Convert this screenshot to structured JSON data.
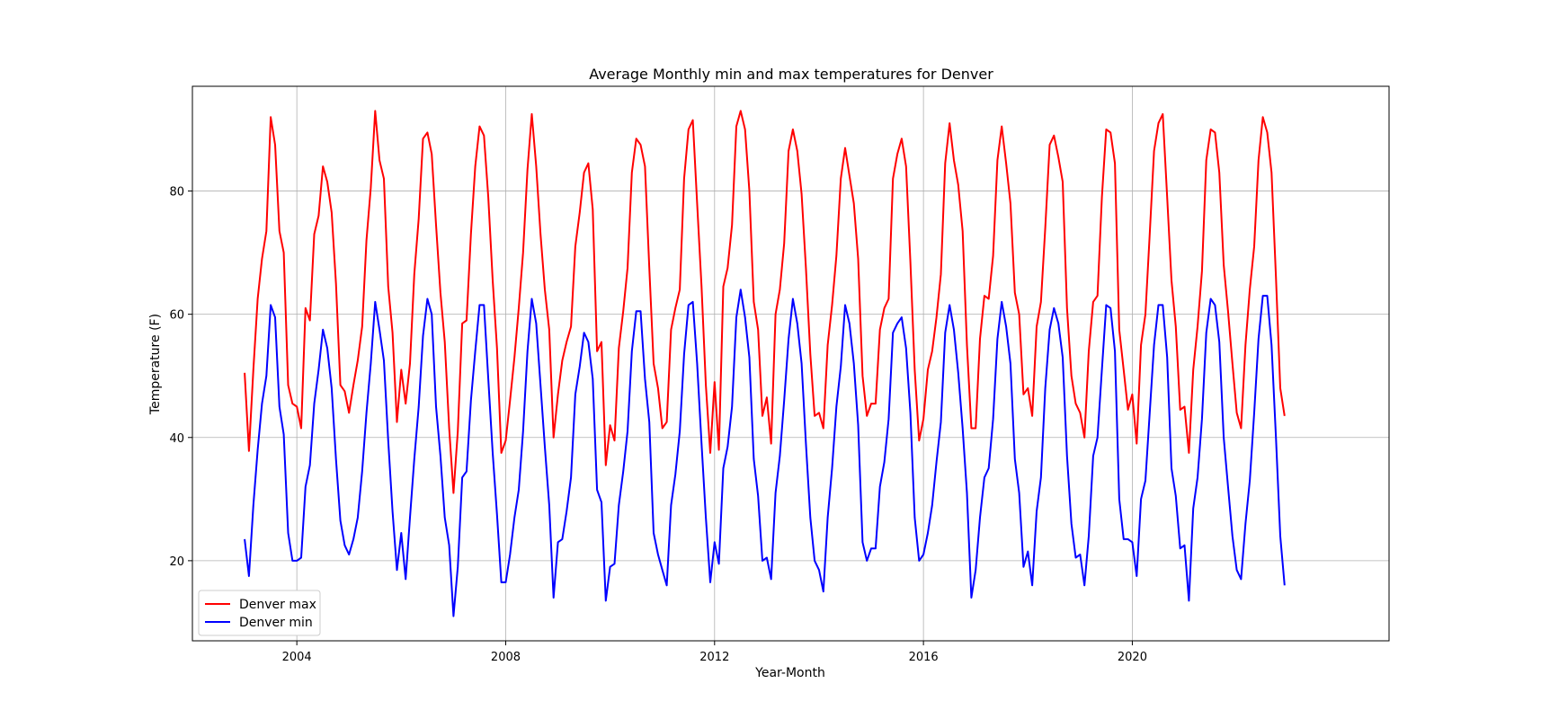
{
  "chart_data": {
    "type": "line",
    "title": "Average Monthly min and max temperatures for Denver",
    "xlabel": "Year-Month",
    "ylabel": "Temperature (F)",
    "x_start": "2003-01",
    "x_end": "2022-12",
    "xlim": [
      "2002-01",
      "2024-12"
    ],
    "ylim": [
      7,
      97
    ],
    "xticks": [
      "2004",
      "2008",
      "2012",
      "2016",
      "2020"
    ],
    "yticks": [
      20,
      40,
      60,
      80
    ],
    "grid": true,
    "legend_position": "lower-left",
    "series": [
      {
        "name": "Denver max",
        "color": "#ff0000",
        "values": [
          50.5,
          37.8,
          51,
          62.5,
          69,
          73.5,
          92,
          87.5,
          73.5,
          70,
          48.5,
          45.5,
          45,
          41.5,
          61,
          59,
          73,
          76,
          84,
          81.5,
          76.5,
          65,
          48.5,
          47.5,
          44,
          48.5,
          52.5,
          58,
          72,
          80.5,
          93,
          85,
          82,
          64.5,
          57,
          42.5,
          51,
          45.5,
          52,
          66.5,
          75.5,
          88.5,
          89.5,
          86,
          74.5,
          63.5,
          55.5,
          41.5,
          31,
          41,
          58.5,
          59,
          73,
          84,
          90.5,
          89,
          79,
          65.5,
          54.5,
          37.5,
          39.5,
          46,
          53,
          61,
          70,
          83.5,
          92.5,
          84,
          73,
          64,
          57.5,
          40,
          47,
          52.5,
          55.5,
          58,
          71,
          76.5,
          83,
          84.5,
          77,
          54,
          55.5,
          35.5,
          42,
          39.5,
          54.5,
          60.5,
          67.5,
          83,
          88.5,
          87.5,
          84,
          67.5,
          52,
          48,
          41.5,
          42.5,
          57.5,
          61,
          64,
          82,
          90,
          91.5,
          78,
          64.5,
          48.5,
          37.5,
          49,
          38,
          64.5,
          67.5,
          74.5,
          90.5,
          93,
          90,
          80,
          62,
          57.5,
          43.5,
          46.5,
          39,
          60,
          64,
          71.5,
          86.5,
          90,
          86.5,
          79.5,
          67.5,
          53.5,
          43.5,
          44,
          41.5,
          55,
          61.5,
          69.5,
          82,
          87,
          82.5,
          78,
          69,
          50,
          43.5,
          45.5,
          45.5,
          57.5,
          61,
          62.5,
          82,
          86,
          88.5,
          84,
          68.5,
          51,
          39.5,
          43,
          51,
          54,
          59.5,
          66.5,
          84.5,
          91,
          85,
          81,
          73.5,
          55,
          41.5,
          41.5,
          56,
          63,
          62.5,
          69.5,
          85,
          90.5,
          84.5,
          78,
          63.5,
          60,
          47,
          48,
          43.5,
          58,
          62,
          74,
          87.5,
          89,
          85.5,
          81.5,
          61,
          50,
          45.5,
          44,
          40,
          54,
          62,
          63,
          79,
          90,
          89.5,
          84.5,
          57.5,
          51,
          44.5,
          47,
          39,
          55,
          60,
          73,
          86.5,
          91,
          92.5,
          79,
          65.5,
          58,
          44.5,
          45,
          37.5,
          51,
          58,
          67,
          85,
          90,
          89.5,
          83,
          68,
          60.5,
          52,
          44,
          41.5,
          55,
          64,
          71,
          85,
          92,
          89.5,
          83,
          66,
          48,
          43.5
        ]
      },
      {
        "name": "Denver min",
        "color": "#0000ff",
        "values": [
          23.5,
          17.5,
          29,
          38,
          45.5,
          50,
          61.5,
          59.5,
          45,
          40.5,
          24.5,
          20,
          20,
          20.5,
          32,
          35.5,
          45.5,
          51,
          57.5,
          54.5,
          48,
          36.5,
          26.5,
          22.5,
          21,
          23.5,
          27,
          34.5,
          44,
          52,
          62,
          57.5,
          52.5,
          39.5,
          28,
          18.5,
          24.5,
          17,
          27,
          36.5,
          45,
          56.5,
          62.5,
          60,
          45,
          37,
          27,
          22.5,
          11,
          19,
          33.5,
          34.5,
          46,
          54,
          61.5,
          61.5,
          49.5,
          37.5,
          27.5,
          16.5,
          16.5,
          21,
          27,
          31.5,
          41,
          54,
          62.5,
          58.5,
          48.5,
          38.5,
          29,
          14,
          23,
          23.5,
          28,
          33.5,
          47,
          51.5,
          57,
          55.5,
          49.5,
          31.5,
          29.5,
          13.5,
          19,
          19.5,
          29,
          34.5,
          41,
          54,
          60.5,
          60.5,
          49.5,
          42.5,
          24.5,
          21,
          18.5,
          16,
          29,
          34,
          41,
          53.5,
          61.5,
          62,
          52,
          39,
          27,
          16.5,
          23,
          19.5,
          35,
          38.5,
          45,
          59.5,
          64,
          59.5,
          53,
          36.5,
          30.5,
          20,
          20.5,
          17,
          31,
          37,
          46,
          56,
          62.5,
          58.5,
          52,
          39,
          27,
          20,
          18.5,
          15,
          27,
          35,
          45,
          51.5,
          61.5,
          58.5,
          52,
          42,
          23,
          20,
          22,
          22,
          32,
          36,
          43,
          57,
          58.5,
          59.5,
          54.5,
          44,
          27,
          20,
          21,
          24.5,
          29,
          36,
          42.5,
          57,
          61.5,
          57.5,
          50.5,
          41.5,
          31,
          14,
          18.5,
          27,
          33.5,
          35,
          43,
          56,
          62,
          58,
          52,
          36.5,
          31,
          19,
          21.5,
          16,
          28,
          33.5,
          48,
          57.5,
          61,
          58.5,
          53,
          37,
          26,
          20.5,
          21,
          16,
          24,
          37,
          40,
          51,
          61.5,
          61,
          54,
          30,
          23.5,
          23.5,
          23,
          17.5,
          30,
          33,
          44,
          55,
          61.5,
          61.5,
          53,
          35,
          30.5,
          22,
          22.5,
          13.5,
          28.5,
          33.5,
          43,
          57,
          62.5,
          61.5,
          55.5,
          40,
          32,
          24,
          18.5,
          17,
          26,
          33,
          44,
          56,
          63,
          63,
          55,
          40,
          24,
          16
        ]
      }
    ]
  }
}
